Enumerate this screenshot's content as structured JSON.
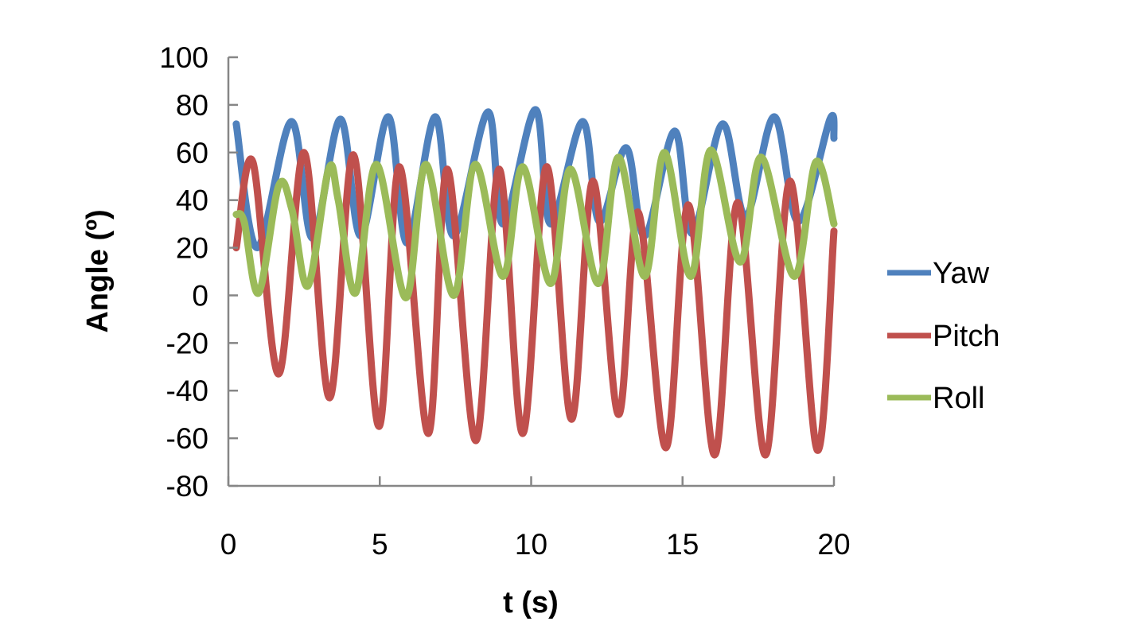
{
  "chart_data": {
    "type": "line",
    "title": "",
    "xlabel": "t (s)",
    "ylabel": "Angle (º)",
    "xlim": [
      0,
      20
    ],
    "ylim": [
      -80,
      100
    ],
    "xticks": [
      0,
      5,
      10,
      15,
      20
    ],
    "yticks": [
      100,
      80,
      60,
      40,
      20,
      0,
      -20,
      -40,
      -60,
      -80
    ],
    "grid": false,
    "legend": "right",
    "series": [
      {
        "name": "Yaw",
        "color": "#4F81BD",
        "x": [
          0.26,
          0.95,
          2.08,
          2.78,
          3.7,
          4.37,
          5.28,
          5.9,
          6.83,
          7.44,
          8.57,
          9.07,
          10.14,
          10.64,
          11.7,
          12.25,
          13.14,
          13.75,
          14.74,
          15.32,
          16.32,
          17.08,
          18.03,
          18.82,
          19.87,
          20
        ],
        "y": [
          72,
          20,
          73,
          24,
          74,
          25,
          75,
          22,
          75,
          25,
          77,
          30,
          78,
          30,
          73,
          31,
          62,
          25,
          69,
          26,
          72,
          33,
          75,
          31,
          74,
          66
        ]
      },
      {
        "name": "Pitch",
        "color": "#C0504D",
        "x": [
          0.26,
          0.81,
          1.66,
          2.5,
          3.34,
          4.13,
          4.97,
          5.65,
          6.6,
          7.23,
          8.17,
          8.94,
          9.72,
          10.51,
          11.33,
          12.04,
          12.88,
          13.53,
          14.45,
          15.19,
          16.06,
          16.82,
          17.74,
          18.55,
          19.45,
          20
        ],
        "y": [
          20,
          56,
          -33,
          60,
          -43,
          59,
          -55,
          54,
          -58,
          53,
          -61,
          53,
          -58,
          54,
          -52,
          48,
          -50,
          35,
          -64,
          38,
          -67,
          39,
          -67,
          48,
          -65,
          27
        ]
      },
      {
        "name": "Roll",
        "color": "#9BBB59",
        "x": [
          0.26,
          0.52,
          1.0,
          1.66,
          2.1,
          2.63,
          3.31,
          3.63,
          4.2,
          4.89,
          5.86,
          6.52,
          7.44,
          8.15,
          9.07,
          9.72,
          10.64,
          11.3,
          12.22,
          12.88,
          13.75,
          14.4,
          15.27,
          15.93,
          16.9,
          17.6,
          18.69,
          19.4,
          20
        ],
        "y": [
          34,
          31,
          1,
          46,
          36,
          4,
          53,
          40,
          1,
          55,
          -1,
          55,
          0,
          55,
          8,
          54,
          5,
          53,
          5,
          58,
          8,
          60,
          8,
          61,
          14,
          58,
          8,
          56,
          30
        ]
      }
    ]
  }
}
